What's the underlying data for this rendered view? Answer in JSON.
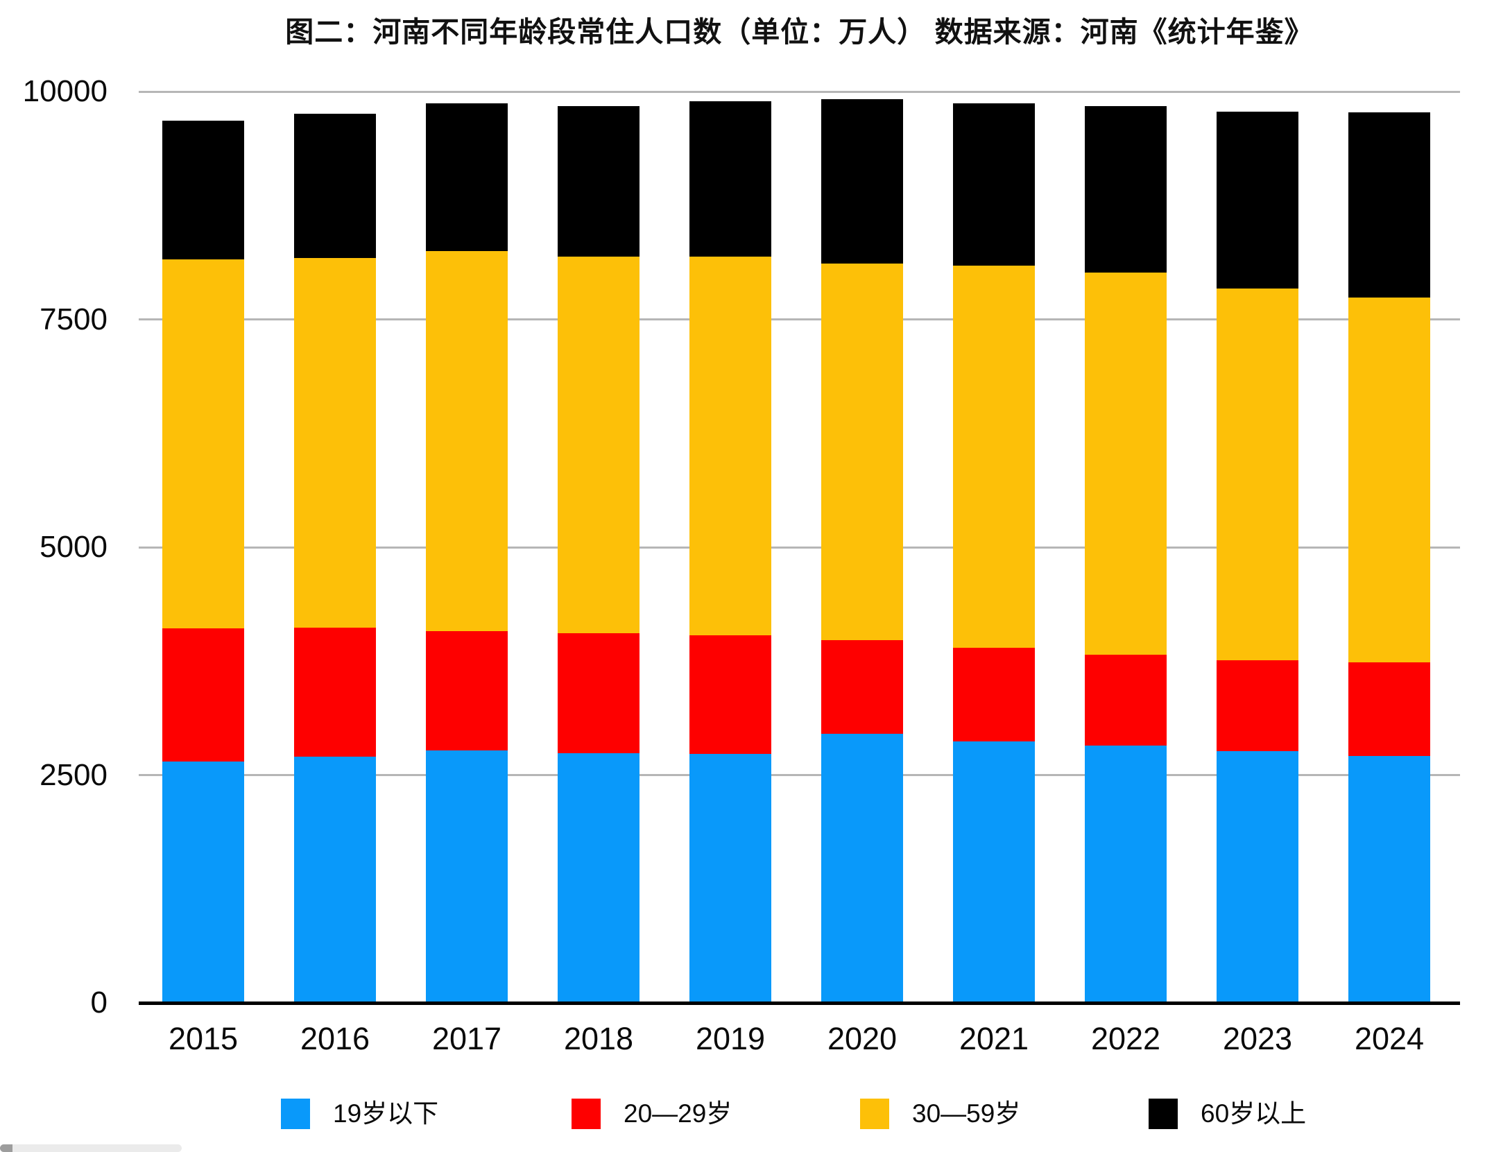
{
  "chart_data": {
    "type": "bar",
    "stacked": true,
    "title": "图二：河南不同年龄段常住人口数（单位：万人） 数据来源：河南《统计年鉴》",
    "unit": "万人",
    "categories": [
      "2015",
      "2016",
      "2017",
      "2018",
      "2019",
      "2020",
      "2021",
      "2022",
      "2023",
      "2024"
    ],
    "series": [
      {
        "name": "19岁以下",
        "color": "#0999fa",
        "values": [
          2650,
          2700,
          2770,
          2740,
          2730,
          2950,
          2870,
          2820,
          2760,
          2710
        ]
      },
      {
        "name": "20—29岁",
        "color": "#fe0000",
        "values": [
          1460,
          1420,
          1310,
          1320,
          1300,
          1030,
          1030,
          1000,
          1000,
          1030
        ]
      },
      {
        "name": "30—59岁",
        "color": "#fdc008",
        "values": [
          4050,
          4050,
          4170,
          4130,
          4160,
          4130,
          4190,
          4190,
          4080,
          4000
        ]
      },
      {
        "name": "60岁以上",
        "color": "#000000",
        "values": [
          1520,
          1590,
          1620,
          1650,
          1700,
          1810,
          1780,
          1830,
          1940,
          2030
        ]
      }
    ],
    "totals": [
      9680,
      9760,
      9870,
      9840,
      9890,
      9920,
      9870,
      9840,
      9780,
      9770
    ],
    "ylim": [
      0,
      10000
    ],
    "y_ticks": [
      0,
      2500,
      5000,
      7500,
      10000
    ],
    "y_tick_labels": [
      "0",
      "2500",
      "5000",
      "7500",
      "10000"
    ],
    "xlabel": "",
    "ylabel": "",
    "grid": true,
    "legend_position": "bottom",
    "gridline_color": "#b6b6b6",
    "axis_color": "#000000"
  }
}
